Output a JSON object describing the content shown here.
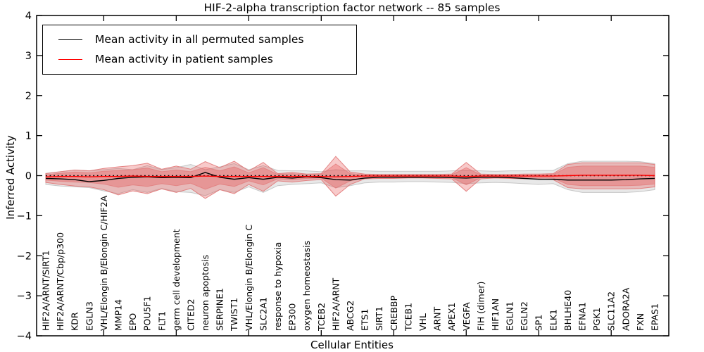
{
  "figure": {
    "title": "HIF-2-alpha transcription factor network -- 85 samples",
    "x_axis_label": "Cellular Entities",
    "y_axis_label": "Inferred Activity"
  },
  "legend": {
    "items": [
      {
        "label": "Mean activity in all permuted samples",
        "color": "#000000"
      },
      {
        "label": "Mean activity in patient samples",
        "color": "#ff0000"
      }
    ]
  },
  "chart_data": {
    "type": "line",
    "title": "HIF-2-alpha transcription factor network -- 85 samples",
    "xlabel": "Cellular Entities",
    "ylabel": "Inferred Activity",
    "ylim": [
      -4,
      4
    ],
    "y_ticks": [
      4,
      3,
      2,
      1,
      0,
      -1,
      -2,
      -3,
      -4
    ],
    "y_tick_labels": [
      "4",
      "3",
      "2",
      "1",
      "0",
      "−1",
      "−2",
      "−3",
      "−4"
    ],
    "x_major_tick_indices": [
      4,
      9,
      14,
      19,
      24,
      29,
      34,
      39
    ],
    "grid": false,
    "legend_position": "upper-left",
    "categories": [
      "HIF2A/ARNT/SIRT1",
      "HIF2A/ARNT/Cbp/p300",
      "KDR",
      "EGLN3",
      "VHL/Elongin B/Elongin C/HIF2A",
      "MMP14",
      "EPO",
      "POU5F1",
      "FLT1",
      "germ cell development",
      "CITED2",
      "neuron apoptosis",
      "SERPINE1",
      "TWIST1",
      "VHL/Elongin B/Elongin C",
      "SLC2A1",
      "response to hypoxia",
      "EP300",
      "oxygen homeostasis",
      "TCEB2",
      "HIF2A/ARNT",
      "ABCG2",
      "ETS1",
      "SIRT1",
      "CREBBP",
      "TCEB1",
      "VHL",
      "ARNT",
      "APEX1",
      "VEGFA",
      "FIH (dimer)",
      "HIF1AN",
      "EGLN1",
      "EGLN2",
      "SP1",
      "ELK1",
      "BHLHE40",
      "EFNA1",
      "PGK1",
      "SLC11A2",
      "ADORA2A",
      "FXN",
      "EPAS1"
    ],
    "series": [
      {
        "name": "Mean activity in all permuted samples",
        "color": "#000000",
        "style": "solid",
        "values": [
          -0.07,
          -0.08,
          -0.1,
          -0.15,
          -0.12,
          -0.07,
          -0.04,
          -0.03,
          -0.05,
          -0.04,
          -0.05,
          0.08,
          -0.04,
          -0.09,
          -0.05,
          -0.09,
          -0.04,
          -0.06,
          -0.03,
          -0.05,
          -0.1,
          -0.11,
          -0.06,
          -0.04,
          -0.04,
          -0.04,
          -0.04,
          -0.04,
          -0.05,
          -0.06,
          -0.04,
          -0.04,
          -0.05,
          -0.07,
          -0.09,
          -0.09,
          -0.11,
          -0.11,
          -0.11,
          -0.11,
          -0.1,
          -0.08,
          -0.07
        ]
      },
      {
        "name": "Mean activity in patient samples",
        "color": "#ff0000",
        "style": "solid",
        "values": [
          -0.03,
          -0.02,
          -0.02,
          -0.03,
          -0.02,
          -0.02,
          -0.01,
          -0.02,
          -0.02,
          -0.02,
          -0.02,
          -0.01,
          -0.02,
          -0.02,
          -0.02,
          -0.02,
          -0.02,
          -0.02,
          -0.02,
          -0.02,
          -0.03,
          -0.02,
          -0.01,
          -0.01,
          -0.01,
          -0.01,
          -0.01,
          -0.01,
          -0.01,
          -0.02,
          -0.01,
          -0.01,
          -0.01,
          -0.01,
          -0.01,
          -0.01,
          0.0,
          0.01,
          0.01,
          0.01,
          0.01,
          0.01,
          0.0
        ]
      }
    ],
    "zero_line": {
      "value": 0,
      "style": "dotted",
      "color": "#000000"
    },
    "bands": [
      {
        "name": "permuted-samples-std-band",
        "color": "#000000",
        "fill_opacity": 0.09,
        "edge_color": "#aaaaaa",
        "edge_opacity": 0.6,
        "upper": [
          0.06,
          0.1,
          0.14,
          0.12,
          0.15,
          0.18,
          0.15,
          0.25,
          0.15,
          0.2,
          0.28,
          0.15,
          0.22,
          0.3,
          0.15,
          0.25,
          0.13,
          0.12,
          0.12,
          0.1,
          0.15,
          0.12,
          0.12,
          0.11,
          0.11,
          0.11,
          0.11,
          0.11,
          0.12,
          0.13,
          0.12,
          0.11,
          0.12,
          0.12,
          0.13,
          0.13,
          0.3,
          0.36,
          0.36,
          0.36,
          0.36,
          0.35,
          0.3
        ],
        "lower": [
          -0.22,
          -0.26,
          -0.28,
          -0.3,
          -0.38,
          -0.45,
          -0.35,
          -0.42,
          -0.32,
          -0.4,
          -0.42,
          -0.5,
          -0.35,
          -0.42,
          -0.28,
          -0.42,
          -0.25,
          -0.22,
          -0.2,
          -0.18,
          -0.3,
          -0.25,
          -0.18,
          -0.16,
          -0.16,
          -0.15,
          -0.15,
          -0.16,
          -0.17,
          -0.2,
          -0.18,
          -0.17,
          -0.18,
          -0.2,
          -0.22,
          -0.2,
          -0.35,
          -0.42,
          -0.42,
          -0.42,
          -0.42,
          -0.4,
          -0.35
        ]
      },
      {
        "name": "patient-samples-std-outer-band",
        "color": "#e63c3c",
        "fill_opacity": 0.27,
        "edge_color": "#e17878",
        "edge_opacity": 0.9,
        "upper": [
          0.05,
          0.1,
          0.14,
          0.12,
          0.18,
          0.22,
          0.25,
          0.31,
          0.16,
          0.24,
          0.16,
          0.35,
          0.2,
          0.36,
          0.12,
          0.33,
          0.05,
          0.08,
          0.04,
          0.05,
          0.48,
          0.09,
          0.04,
          0.03,
          0.03,
          0.03,
          0.03,
          0.03,
          0.04,
          0.33,
          0.04,
          0.03,
          0.03,
          0.04,
          0.04,
          0.05,
          0.28,
          0.32,
          0.32,
          0.32,
          0.32,
          0.32,
          0.28
        ],
        "lower": [
          -0.17,
          -0.22,
          -0.26,
          -0.28,
          -0.35,
          -0.48,
          -0.38,
          -0.45,
          -0.33,
          -0.42,
          -0.32,
          -0.57,
          -0.35,
          -0.45,
          -0.22,
          -0.39,
          -0.13,
          -0.16,
          -0.12,
          -0.1,
          -0.51,
          -0.22,
          -0.08,
          -0.07,
          -0.07,
          -0.06,
          -0.06,
          -0.07,
          -0.08,
          -0.39,
          -0.08,
          -0.06,
          -0.07,
          -0.08,
          -0.08,
          -0.1,
          -0.3,
          -0.33,
          -0.33,
          -0.33,
          -0.33,
          -0.32,
          -0.28
        ]
      },
      {
        "name": "patient-samples-std-inner-band",
        "color": "#e63c3c",
        "fill_opacity": 0.28,
        "edge_color": "#e17878",
        "edge_opacity": 0.7,
        "upper": [
          0.02,
          0.06,
          0.09,
          0.07,
          0.11,
          0.13,
          0.15,
          0.19,
          0.1,
          0.14,
          0.1,
          0.21,
          0.12,
          0.22,
          0.07,
          0.2,
          0.03,
          0.05,
          0.02,
          0.03,
          0.29,
          0.05,
          0.02,
          0.02,
          0.02,
          0.02,
          0.02,
          0.02,
          0.02,
          0.2,
          0.02,
          0.02,
          0.02,
          0.02,
          0.02,
          0.03,
          0.21,
          0.24,
          0.24,
          0.24,
          0.24,
          0.24,
          0.21
        ],
        "lower": [
          -0.11,
          -0.14,
          -0.16,
          -0.17,
          -0.21,
          -0.29,
          -0.23,
          -0.27,
          -0.2,
          -0.25,
          -0.19,
          -0.34,
          -0.21,
          -0.27,
          -0.13,
          -0.23,
          -0.08,
          -0.1,
          -0.07,
          -0.06,
          -0.31,
          -0.13,
          -0.05,
          -0.04,
          -0.04,
          -0.04,
          -0.04,
          -0.04,
          -0.05,
          -0.23,
          -0.05,
          -0.04,
          -0.04,
          -0.05,
          -0.05,
          -0.06,
          -0.22,
          -0.25,
          -0.25,
          -0.25,
          -0.25,
          -0.24,
          -0.21
        ]
      }
    ]
  }
}
